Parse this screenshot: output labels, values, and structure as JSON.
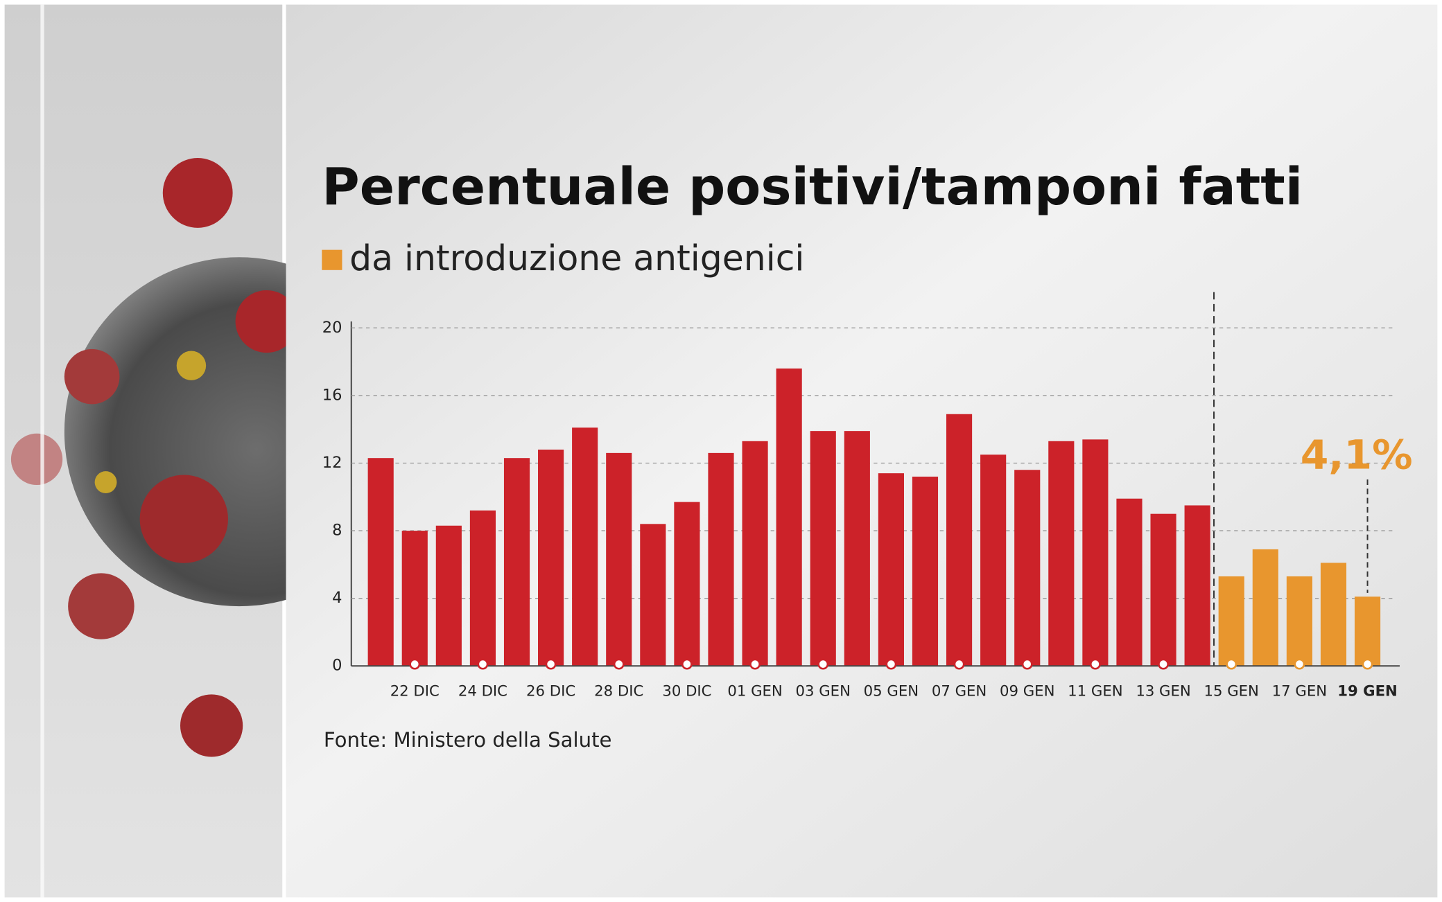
{
  "chart_data": {
    "type": "bar",
    "title": "Percentuale positivi/tamponi fatti",
    "legend": {
      "label": "da introduzione antigenici",
      "color": "#e8962e"
    },
    "source": "Fonte: Ministero della Salute",
    "categories": [
      null,
      "22 DIC",
      null,
      "24 DIC",
      null,
      "26 DIC",
      null,
      "28 DIC",
      null,
      "30 DIC",
      null,
      "01 GEN",
      null,
      "03 GEN",
      null,
      "05 GEN",
      null,
      "07 GEN",
      null,
      "09 GEN",
      null,
      "11 GEN",
      null,
      "13 GEN",
      null,
      "15 GEN",
      null,
      "17 GEN",
      null,
      "19 GEN"
    ],
    "values": [
      12.3,
      8.0,
      8.3,
      9.2,
      12.3,
      12.8,
      14.1,
      12.6,
      8.4,
      9.7,
      12.6,
      13.3,
      17.6,
      13.9,
      13.9,
      11.4,
      11.2,
      14.9,
      12.5,
      11.6,
      13.3,
      13.4,
      9.9,
      9.0,
      9.5,
      5.3,
      6.9,
      5.3,
      6.1,
      4.1
    ],
    "value_labels": [
      null,
      null,
      null,
      null,
      null,
      null,
      null,
      null,
      null,
      null,
      null,
      null,
      null,
      null,
      null,
      null,
      null,
      null,
      null,
      null,
      null,
      null,
      null,
      null,
      null,
      null,
      null,
      null,
      null,
      "4,1%"
    ],
    "colors": [
      "#cc2229",
      "#cc2229",
      "#cc2229",
      "#cc2229",
      "#cc2229",
      "#cc2229",
      "#cc2229",
      "#cc2229",
      "#cc2229",
      "#cc2229",
      "#cc2229",
      "#cc2229",
      "#cc2229",
      "#cc2229",
      "#cc2229",
      "#cc2229",
      "#cc2229",
      "#cc2229",
      "#cc2229",
      "#cc2229",
      "#cc2229",
      "#cc2229",
      "#cc2229",
      "#cc2229",
      "#cc2229",
      "#e8962e",
      "#e8962e",
      "#e8962e",
      "#e8962e",
      "#e8962e"
    ],
    "ylim": [
      0,
      20
    ],
    "yticks": [
      0,
      4,
      8,
      12,
      16,
      20
    ],
    "grid": true
  }
}
